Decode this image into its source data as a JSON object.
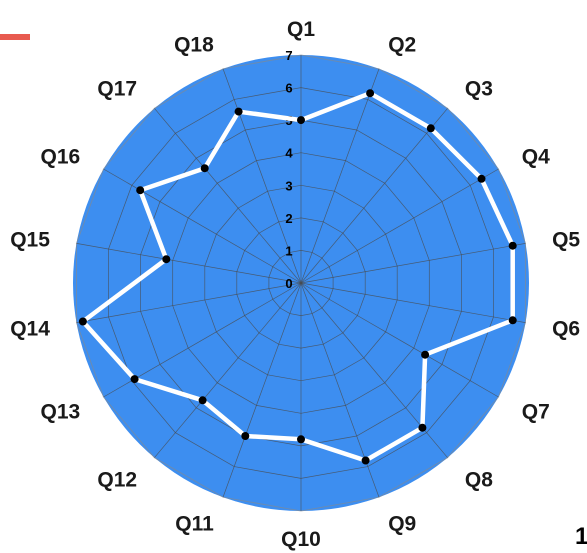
{
  "colors": {
    "plot_fill": "#3d8ef0",
    "grid": "#4a4a4a",
    "series_line": "#ffffff",
    "marker": "#000000",
    "accent": "#e85a4f"
  },
  "corner_text": "1",
  "chart_data": {
    "type": "radar",
    "categories": [
      "Q1",
      "Q2",
      "Q3",
      "Q4",
      "Q5",
      "Q6",
      "Q7",
      "Q8",
      "Q9",
      "Q10",
      "Q11",
      "Q12",
      "Q13",
      "Q14",
      "Q15",
      "Q16",
      "Q17",
      "Q18"
    ],
    "series": [
      {
        "values": [
          5.0,
          6.2,
          6.2,
          6.4,
          6.6,
          6.6,
          4.4,
          5.8,
          5.8,
          4.8,
          5.0,
          4.7,
          5.9,
          6.8,
          4.2,
          5.7,
          4.6,
          5.6
        ]
      }
    ],
    "rlim": [
      0,
      7
    ],
    "rticks": [
      "0",
      "1",
      "2",
      "3",
      "4",
      "5",
      "6",
      "7"
    ],
    "grid": true
  }
}
